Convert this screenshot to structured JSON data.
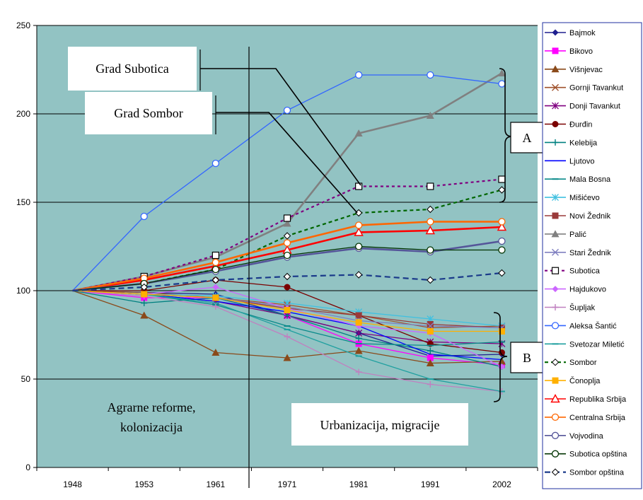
{
  "chart_data": {
    "type": "line",
    "x": [
      "1948",
      "1953",
      "1961",
      "1971",
      "1981",
      "1991",
      "2002"
    ],
    "ylim": [
      0,
      250
    ],
    "yticks": [
      0,
      50,
      100,
      150,
      200,
      250
    ],
    "grid": true,
    "legend_position": "right",
    "series": [
      {
        "name": "Bajmok",
        "color": "#1f1f8f",
        "dash": "",
        "marker": "diamond",
        "values": [
          100,
          99,
          98,
          86,
          76,
          63,
          64
        ]
      },
      {
        "name": "Bikovo",
        "color": "#ff00ff",
        "dash": "",
        "marker": "square",
        "values": [
          100,
          96,
          96,
          86,
          70,
          62,
          58
        ]
      },
      {
        "name": "Višnjevac",
        "color": "#8a4a1a",
        "dash": "",
        "marker": "triangle",
        "values": [
          100,
          86,
          65,
          62,
          66,
          59,
          60
        ]
      },
      {
        "name": "Gornji Tavankut",
        "color": "#a0522d",
        "dash": "",
        "marker": "x",
        "values": [
          100,
          99,
          96,
          92,
          86,
          79,
          80
        ]
      },
      {
        "name": "Donji Tavankut",
        "color": "#800080",
        "dash": "",
        "marker": "star",
        "values": [
          100,
          98,
          94,
          86,
          76,
          71,
          70
        ]
      },
      {
        "name": "Đurđin",
        "color": "#7a0000",
        "dash": "",
        "marker": "circle",
        "values": [
          100,
          100,
          106,
          102,
          86,
          70,
          65
        ]
      },
      {
        "name": "Kelebija",
        "color": "#008080",
        "dash": "",
        "marker": "plus",
        "values": [
          100,
          93,
          96,
          86,
          73,
          66,
          57
        ]
      },
      {
        "name": "Ljutovo",
        "color": "#0000ff",
        "dash": "",
        "marker": "none",
        "values": [
          100,
          98,
          94,
          88,
          80,
          64,
          61
        ]
      },
      {
        "name": "Mala Bosna",
        "color": "#0a8a8a",
        "dash": "",
        "marker": "dash",
        "values": [
          100,
          98,
          92,
          80,
          70,
          69,
          71
        ]
      },
      {
        "name": "Mišićevo",
        "color": "#40c0e0",
        "dash": "",
        "marker": "star",
        "values": [
          100,
          98,
          97,
          93,
          88,
          84,
          80
        ]
      },
      {
        "name": "Novi Žednik",
        "color": "#9a3a3a",
        "dash": "",
        "marker": "square",
        "values": [
          100,
          98,
          96,
          90,
          86,
          81,
          79
        ]
      },
      {
        "name": "Palić",
        "color": "#808080",
        "dash": "",
        "marker": "triangle",
        "values": [
          100,
          108,
          119,
          138,
          189,
          199,
          223
        ]
      },
      {
        "name": "Stari Žednik",
        "color": "#8080c0",
        "dash": "",
        "marker": "x",
        "values": [
          100,
          98,
          96,
          91,
          83,
          80,
          79
        ]
      },
      {
        "name": "Subotica",
        "color": "#800080",
        "dash": "4,4",
        "marker": "square-open",
        "values": [
          100,
          108,
          120,
          141,
          159,
          159,
          163
        ]
      },
      {
        "name": "Hajdukovo",
        "color": "#cc66ff",
        "dash": "",
        "marker": "diamond",
        "values": [
          100,
          98,
          102,
          90,
          80,
          76,
          57
        ]
      },
      {
        "name": "Šupljak",
        "color": "#c080c0",
        "dash": "",
        "marker": "plus",
        "values": [
          100,
          97,
          91,
          74,
          54,
          47,
          43
        ]
      },
      {
        "name": "Aleksa Šantić",
        "color": "#3366ff",
        "dash": "",
        "marker": "circle-open",
        "values": [
          100,
          142,
          172,
          202,
          222,
          222,
          217
        ]
      },
      {
        "name": "Svetozar Miletić",
        "color": "#20a0a0",
        "dash": "",
        "marker": "dash",
        "values": [
          100,
          98,
          93,
          78,
          63,
          50,
          43
        ]
      },
      {
        "name": "Sombor",
        "color": "#006600",
        "dash": "5,4",
        "marker": "diamond-open",
        "values": [
          100,
          104,
          112,
          131,
          144,
          146,
          157
        ]
      },
      {
        "name": "Čonoplja",
        "color": "#ffb000",
        "dash": "",
        "marker": "square",
        "values": [
          100,
          98,
          96,
          89,
          82,
          77,
          77
        ]
      },
      {
        "name": "Republika Srbija",
        "color": "#ff0000",
        "dash": "",
        "marker": "triangle-open",
        "values": [
          100,
          106,
          114,
          123,
          133,
          134,
          136
        ]
      },
      {
        "name": "Centralna Srbija",
        "color": "#ff6600",
        "dash": "",
        "marker": "circle-open",
        "values": [
          100,
          107,
          116,
          127,
          137,
          139,
          139
        ]
      },
      {
        "name": "Vojvodina",
        "color": "#555599",
        "dash": "",
        "marker": "circle-open",
        "values": [
          100,
          104,
          111,
          119,
          124,
          122,
          128
        ]
      },
      {
        "name": "Subotica opština",
        "color": "#003300",
        "dash": "",
        "marker": "circle-open",
        "values": [
          100,
          104,
          112,
          120,
          125,
          123,
          123
        ]
      },
      {
        "name": "Sombor opština",
        "color": "#1a3a8a",
        "dash": "8,5",
        "marker": "diamond-open",
        "values": [
          100,
          102,
          106,
          108,
          109,
          106,
          110
        ]
      }
    ]
  },
  "annotations": {
    "grad_subotica": "Grad Subotica",
    "grad_sombor": "Grad Sombor",
    "label_a": "A",
    "label_b": "B",
    "period1_line1": "Agrarne reforme,",
    "period1_line2": "kolonizacija",
    "period2": "Urbanizacija, migracije"
  },
  "colors": {
    "plot_background": "#92c3c3",
    "legend_border": "#1f2f9f"
  }
}
